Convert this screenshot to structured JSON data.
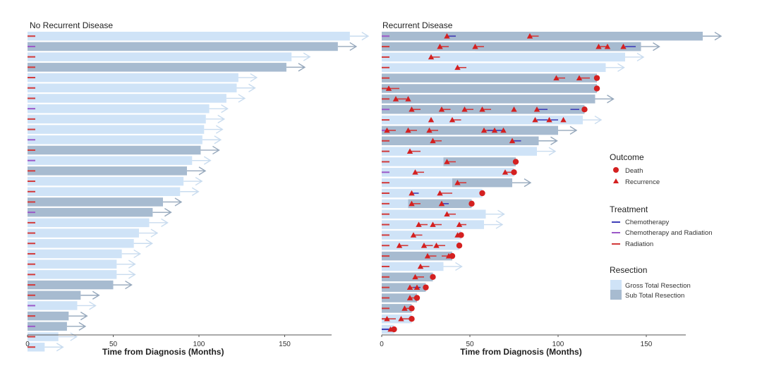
{
  "colors": {
    "gtr": "#cfe3f7",
    "str": "#a7bbd0",
    "arrow_gtr": "#c9dcef",
    "arrow_str": "#96a8bc",
    "chemo": "#3f3fb8",
    "chemorad": "#9b59c8",
    "radiation": "#d23a3a",
    "death": "#d42020",
    "recurrence": "#d42020",
    "axis": "#555555"
  },
  "chart_data": [
    {
      "type": "swimmer",
      "title": "No Recurrent Disease",
      "xlabel": "Time from Diagnosis (Months)",
      "xlim": [
        0,
        185
      ],
      "xticks": [
        0,
        50,
        100,
        150
      ],
      "tick_labels": [
        "0",
        "50",
        "100",
        "150"
      ],
      "patients": [
        {
          "months": 188,
          "resection": "GTR",
          "treatment": "radiation"
        },
        {
          "months": 181,
          "resection": "STR",
          "treatment": "chemorad"
        },
        {
          "months": 154,
          "resection": "GTR",
          "treatment": "radiation"
        },
        {
          "months": 151,
          "resection": "STR",
          "treatment": "radiation"
        },
        {
          "months": 123,
          "resection": "GTR",
          "treatment": "radiation"
        },
        {
          "months": 122,
          "resection": "GTR",
          "treatment": "radiation"
        },
        {
          "months": 116,
          "resection": "GTR",
          "treatment": "radiation"
        },
        {
          "months": 106,
          "resection": "GTR",
          "treatment": "chemorad"
        },
        {
          "months": 104,
          "resection": "GTR",
          "treatment": "radiation"
        },
        {
          "months": 103,
          "resection": "GTR",
          "treatment": "radiation"
        },
        {
          "months": 102,
          "resection": "GTR",
          "treatment": "chemorad"
        },
        {
          "months": 101,
          "resection": "STR",
          "treatment": "radiation"
        },
        {
          "months": 96,
          "resection": "GTR",
          "treatment": "chemorad"
        },
        {
          "months": 93,
          "resection": "STR",
          "treatment": "radiation"
        },
        {
          "months": 91,
          "resection": "GTR",
          "treatment": "radiation"
        },
        {
          "months": 89,
          "resection": "GTR",
          "treatment": "radiation"
        },
        {
          "months": 79,
          "resection": "STR",
          "treatment": "radiation"
        },
        {
          "months": 73,
          "resection": "STR",
          "treatment": "chemorad"
        },
        {
          "months": 71,
          "resection": "GTR",
          "treatment": "radiation"
        },
        {
          "months": 65,
          "resection": "GTR",
          "treatment": "radiation"
        },
        {
          "months": 62,
          "resection": "GTR",
          "treatment": "radiation"
        },
        {
          "months": 55,
          "resection": "GTR",
          "treatment": "radiation"
        },
        {
          "months": 52,
          "resection": "GTR",
          "treatment": "radiation"
        },
        {
          "months": 52,
          "resection": "GTR",
          "treatment": "radiation"
        },
        {
          "months": 50,
          "resection": "STR",
          "treatment": "radiation"
        },
        {
          "months": 31,
          "resection": "STR",
          "treatment": "radiation"
        },
        {
          "months": 29,
          "resection": "GTR",
          "treatment": "chemorad"
        },
        {
          "months": 24,
          "resection": "STR",
          "treatment": "radiation"
        },
        {
          "months": 23,
          "resection": "STR",
          "treatment": "chemorad"
        },
        {
          "months": 18,
          "resection": "GTR",
          "treatment": "radiation"
        },
        {
          "months": 10,
          "resection": "GTR",
          "treatment": "radiation"
        }
      ]
    },
    {
      "type": "swimmer",
      "title": "Recurrent Disease",
      "xlabel": "Time from Diagnosis (Months)",
      "xlim": [
        0,
        172
      ],
      "xticks": [
        0,
        50,
        100,
        150
      ],
      "tick_labels": [
        "0",
        "50",
        "100",
        "150"
      ],
      "patients": [
        {
          "months": 182,
          "resection": "STR",
          "treatment": "chemorad",
          "alive": true,
          "recurrences": [
            37,
            84
          ],
          "chemo": [
            [
              37,
              42
            ]
          ],
          "radiation": [
            [
              37,
              42
            ],
            [
              84,
              89
            ]
          ]
        },
        {
          "months": 147,
          "resection": "STR",
          "treatment": "radiation",
          "alive": true,
          "recurrences": [
            33,
            53,
            123,
            128,
            137
          ],
          "chemo": [
            [
              138,
              144
            ]
          ],
          "radiation": [
            [
              33,
              38
            ],
            [
              53,
              58
            ],
            [
              123,
              128
            ]
          ],
          "str_from": 53
        },
        {
          "months": 138,
          "resection": "GTR",
          "treatment": "radiation",
          "alive": true,
          "recurrences": [
            28
          ],
          "chemo": [],
          "radiation": [
            [
              28,
              33
            ]
          ]
        },
        {
          "months": 127,
          "resection": "GTR",
          "treatment": "radiation",
          "alive": true,
          "recurrences": [
            43
          ],
          "chemo": [],
          "radiation": [
            [
              43,
              48
            ]
          ]
        },
        {
          "months": 122,
          "resection": "STR",
          "treatment": "radiation",
          "death": 122,
          "recurrences": [
            99,
            112
          ],
          "chemo": [],
          "radiation": [
            [
              99,
              104
            ],
            [
              112,
              118
            ]
          ]
        },
        {
          "months": 122,
          "resection": "STR",
          "treatment": "radiation",
          "death": 122,
          "recurrences": [
            4
          ],
          "chemo": [],
          "radiation": [
            [
              4,
              10
            ]
          ]
        },
        {
          "months": 121,
          "resection": "STR",
          "treatment": "radiation",
          "alive": true,
          "recurrences": [
            8,
            15
          ],
          "chemo": [],
          "radiation": [
            [
              8,
              14
            ]
          ]
        },
        {
          "months": 115,
          "resection": "STR",
          "treatment": "chemorad",
          "death": 115,
          "recurrences": [
            17,
            34,
            47,
            57,
            75,
            88
          ],
          "chemo": [
            [
              88,
              94
            ],
            [
              107,
              112
            ]
          ],
          "radiation": [
            [
              17,
              22
            ],
            [
              34,
              39
            ],
            [
              47,
              52
            ],
            [
              57,
              62
            ]
          ],
          "str_from": 45
        },
        {
          "months": 114,
          "resection": "GTR",
          "treatment": "radiation",
          "alive": true,
          "recurrences": [
            28,
            40,
            87,
            95,
            103
          ],
          "chemo": [
            [
              88,
              94
            ],
            [
              96,
              100
            ]
          ],
          "radiation": [
            [
              40,
              45
            ]
          ]
        },
        {
          "months": 100,
          "resection": "STR",
          "treatment": "chemorad",
          "alive": true,
          "recurrences": [
            3,
            15,
            27,
            58,
            64,
            69
          ],
          "chemo": [
            [
              60,
              70
            ]
          ],
          "radiation": [
            [
              3,
              8
            ],
            [
              15,
              20
            ],
            [
              27,
              32
            ],
            [
              58,
              63
            ]
          ],
          "str_from": 27
        },
        {
          "months": 89,
          "resection": "STR",
          "treatment": "radiation",
          "alive": true,
          "recurrences": [
            29,
            74
          ],
          "chemo": [
            [
              75,
              79
            ]
          ],
          "radiation": [
            [
              29,
              34
            ],
            [
              74,
              79
            ]
          ],
          "str_from": 29
        },
        {
          "months": 88,
          "resection": "GTR",
          "treatment": "radiation",
          "alive": true,
          "recurrences": [
            16
          ],
          "chemo": [],
          "radiation": [
            [
              16,
              22
            ]
          ]
        },
        {
          "months": 76,
          "resection": "GTR",
          "treatment": "radiation",
          "death": 76,
          "recurrences": [
            37
          ],
          "chemo": [],
          "radiation": [
            [
              37,
              42
            ]
          ],
          "str_from": 35
        },
        {
          "months": 75,
          "resection": "GTR",
          "treatment": "chemorad",
          "death": 75,
          "recurrences": [
            19,
            70
          ],
          "chemo": [],
          "radiation": [
            [
              19,
              24
            ],
            [
              70,
              75
            ]
          ]
        },
        {
          "months": 74,
          "resection": "GTR",
          "treatment": "radiation",
          "alive": true,
          "recurrences": [
            43
          ],
          "chemo": [],
          "radiation": [
            [
              43,
              48
            ]
          ],
          "str_from": 40
        },
        {
          "months": 57,
          "resection": "GTR",
          "treatment": "radiation",
          "death": 57,
          "recurrences": [
            17,
            33
          ],
          "chemo": [
            [
              17,
              21
            ]
          ],
          "radiation": [
            [
              33,
              40
            ]
          ]
        },
        {
          "months": 51,
          "resection": "GTR",
          "treatment": "radiation",
          "death": 51,
          "recurrences": [
            17,
            34
          ],
          "chemo": [
            [
              34,
              38
            ]
          ],
          "radiation": [
            [
              17,
              22
            ]
          ],
          "str_from": 15
        },
        {
          "months": 59,
          "resection": "GTR",
          "treatment": "radiation",
          "alive": true,
          "recurrences": [
            37
          ],
          "chemo": [],
          "radiation": [
            [
              37,
              42
            ]
          ]
        },
        {
          "months": 58,
          "resection": "GTR",
          "treatment": "radiation",
          "alive": true,
          "recurrences": [
            21,
            29,
            44
          ],
          "chemo": [],
          "radiation": [
            [
              21,
              26
            ],
            [
              29,
              34
            ],
            [
              44,
              48
            ]
          ]
        },
        {
          "months": 45,
          "resection": "GTR",
          "treatment": "radiation",
          "death": 45,
          "recurrences": [
            18,
            43
          ],
          "chemo": [],
          "radiation": [
            [
              18,
              23
            ]
          ]
        },
        {
          "months": 44,
          "resection": "GTR",
          "treatment": "radiation",
          "death": 44,
          "recurrences": [
            10,
            24,
            31
          ],
          "chemo": [],
          "radiation": [
            [
              10,
              15
            ],
            [
              24,
              29
            ],
            [
              31,
              36
            ]
          ]
        },
        {
          "months": 40,
          "resection": "STR",
          "treatment": "radiation",
          "death": 40,
          "recurrences": [
            26,
            38
          ],
          "chemo": [],
          "radiation": [
            [
              26,
              31
            ],
            [
              34,
              39
            ]
          ]
        },
        {
          "months": 35,
          "resection": "GTR",
          "treatment": "radiation",
          "alive": true,
          "recurrences": [
            22
          ],
          "chemo": [],
          "radiation": [
            [
              22,
              27
            ]
          ]
        },
        {
          "months": 29,
          "resection": "STR",
          "treatment": "radiation",
          "death": 29,
          "recurrences": [
            19
          ],
          "chemo": [],
          "radiation": [
            [
              19,
              24
            ]
          ]
        },
        {
          "months": 25,
          "resection": "STR",
          "treatment": "radiation",
          "death": 25,
          "recurrences": [
            16,
            20
          ],
          "chemo": [
            [
              18,
              22
            ]
          ],
          "radiation": [
            [
              16,
              20
            ]
          ]
        },
        {
          "months": 20,
          "resection": "STR",
          "treatment": "radiation",
          "death": 20,
          "recurrences": [
            16
          ],
          "chemo": [],
          "radiation": [
            [
              16,
              20
            ]
          ]
        },
        {
          "months": 17,
          "resection": "STR",
          "treatment": "radiation",
          "death": 17,
          "recurrences": [
            13
          ],
          "chemo": [],
          "radiation": [
            [
              13,
              17
            ]
          ]
        },
        {
          "months": 17,
          "resection": "GTR",
          "treatment": "radiation",
          "death": 17,
          "recurrences": [
            3,
            11
          ],
          "chemo": [],
          "radiation": [
            [
              3,
              8
            ],
            [
              11,
              16
            ]
          ]
        },
        {
          "months": 7,
          "resection": "GTR",
          "treatment": "chemo",
          "death": 7,
          "recurrences": [
            5
          ],
          "chemo": [
            [
              0,
              5
            ]
          ],
          "radiation": []
        }
      ]
    }
  ],
  "legend": {
    "outcome_title": "Outcome",
    "death_label": "Death",
    "recurrence_label": "Recurrence",
    "treatment_title": "Treatment",
    "chemo_label": "Chemotherapy",
    "chemorad_label": "Chemotherapy and Radiation",
    "radiation_label": "Radiation",
    "resection_title": "Resection",
    "gtr_label": "Gross Total Resection",
    "str_label": "Sub Total Resection"
  }
}
